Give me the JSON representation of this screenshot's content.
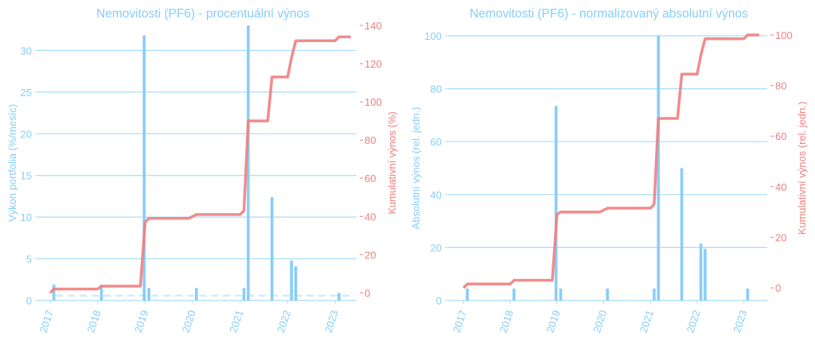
{
  "colors": {
    "bar": "#87cefa",
    "line": "#f08080",
    "grid": "#a8dcfa",
    "zero": "#d2ecf5"
  },
  "chart_data": [
    {
      "type": "bar+line",
      "title": "Nemovitosti (PF6) - procentuální výnos",
      "ylabel": "Výkon portfolia (%/mesíc)",
      "y2label": "Kumulativní výnos (%)",
      "ylim": [
        0,
        33
      ],
      "y2lim": [
        -4,
        140
      ],
      "yticks": [
        0,
        5,
        10,
        15,
        20,
        25,
        30
      ],
      "y2ticks": [
        0,
        20,
        40,
        60,
        80,
        100,
        120,
        140
      ],
      "xticks": [
        2017,
        2018,
        2019,
        2020,
        2021,
        2022,
        2023
      ],
      "xlim": [
        2016.75,
        2023.45
      ],
      "zero_line_y2": -1.5,
      "bars": {
        "x": [
          2017.08,
          2018.08,
          2018.98,
          2019.08,
          2020.08,
          2021.08,
          2021.17,
          2021.67,
          2022.08,
          2022.17,
          2023.08
        ],
        "values": [
          1.9,
          1.9,
          31.8,
          1.5,
          1.5,
          1.5,
          33.0,
          12.4,
          4.8,
          4.1,
          0.9
        ]
      },
      "line": {
        "x": [
          2017.0,
          2017.08,
          2018.0,
          2018.08,
          2018.9,
          2019.0,
          2019.08,
          2019.92,
          2020.08,
          2021.0,
          2021.08,
          2021.17,
          2021.58,
          2021.67,
          2022.0,
          2022.08,
          2022.17,
          2023.0,
          2023.08,
          2023.33
        ],
        "values": [
          0,
          2,
          2,
          3.5,
          3.5,
          37,
          39,
          39,
          41,
          41,
          43,
          90,
          90,
          113,
          113,
          123,
          132,
          132,
          134,
          134
        ]
      }
    },
    {
      "type": "bar+line",
      "title": "Nemovitosti (PF6) - normalizovaný absolutní výnos",
      "ylabel": "Absolutní výnos (rel. jedn.)",
      "y2label": "Kumulativní výnos (rel. jedn.)",
      "ylim": [
        0,
        100
      ],
      "y2lim": [
        -5,
        100
      ],
      "yticks": [
        0,
        20,
        40,
        60,
        80,
        100
      ],
      "y2ticks": [
        0,
        20,
        40,
        60,
        80,
        100
      ],
      "xticks": [
        2017,
        2018,
        2019,
        2020,
        2021,
        2022,
        2023
      ],
      "xlim": [
        2016.67,
        2023.5
      ],
      "bars": {
        "x": [
          2017.08,
          2018.08,
          2018.98,
          2019.08,
          2020.08,
          2021.08,
          2021.17,
          2021.67,
          2022.08,
          2022.17,
          2023.08
        ],
        "values": [
          4.5,
          4.5,
          73.5,
          4.5,
          4.5,
          4.5,
          100,
          50,
          21.5,
          19.5,
          4.5
        ]
      },
      "line": {
        "x": [
          2017.0,
          2017.08,
          2018.0,
          2018.08,
          2018.9,
          2019.0,
          2019.08,
          2019.92,
          2020.08,
          2021.0,
          2021.08,
          2021.17,
          2021.58,
          2021.67,
          2022.0,
          2022.08,
          2022.17,
          2023.0,
          2023.08,
          2023.33
        ],
        "values": [
          0,
          1.5,
          1.5,
          3,
          3,
          29,
          30,
          30,
          31.5,
          31.5,
          33,
          67,
          67,
          84.5,
          84.5,
          92,
          98.5,
          98.5,
          100,
          100
        ]
      }
    }
  ]
}
